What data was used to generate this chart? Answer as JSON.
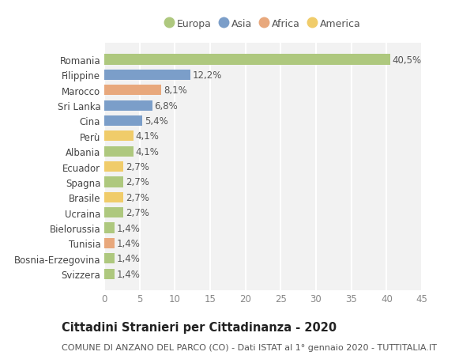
{
  "countries": [
    "Romania",
    "Filippine",
    "Marocco",
    "Sri Lanka",
    "Cina",
    "Perù",
    "Albania",
    "Ecuador",
    "Spagna",
    "Brasile",
    "Ucraina",
    "Bielorussia",
    "Tunisia",
    "Bosnia-Erzegovina",
    "Svizzera"
  ],
  "values": [
    40.5,
    12.2,
    8.1,
    6.8,
    5.4,
    4.1,
    4.1,
    2.7,
    2.7,
    2.7,
    2.7,
    1.4,
    1.4,
    1.4,
    1.4
  ],
  "labels": [
    "40,5%",
    "12,2%",
    "8,1%",
    "6,8%",
    "5,4%",
    "4,1%",
    "4,1%",
    "2,7%",
    "2,7%",
    "2,7%",
    "2,7%",
    "1,4%",
    "1,4%",
    "1,4%",
    "1,4%"
  ],
  "continents": [
    "Europa",
    "Asia",
    "Africa",
    "Asia",
    "Asia",
    "America",
    "Europa",
    "America",
    "Europa",
    "America",
    "Europa",
    "Europa",
    "Africa",
    "Europa",
    "Europa"
  ],
  "colors": {
    "Europa": "#aec87e",
    "Asia": "#7b9ec9",
    "Africa": "#e8a87c",
    "America": "#f0cc6a"
  },
  "xlim": [
    0,
    45
  ],
  "xticks": [
    0,
    5,
    10,
    15,
    20,
    25,
    30,
    35,
    40,
    45
  ],
  "title": "Cittadini Stranieri per Cittadinanza - 2020",
  "subtitle": "COMUNE DI ANZANO DEL PARCO (CO) - Dati ISTAT al 1° gennaio 2020 - TUTTITALIA.IT",
  "background_color": "#ffffff",
  "plot_bg_color": "#f2f2f2",
  "grid_color": "#ffffff",
  "bar_height": 0.68,
  "label_fontsize": 8.5,
  "tick_fontsize": 8.5,
  "title_fontsize": 10.5,
  "subtitle_fontsize": 8
}
